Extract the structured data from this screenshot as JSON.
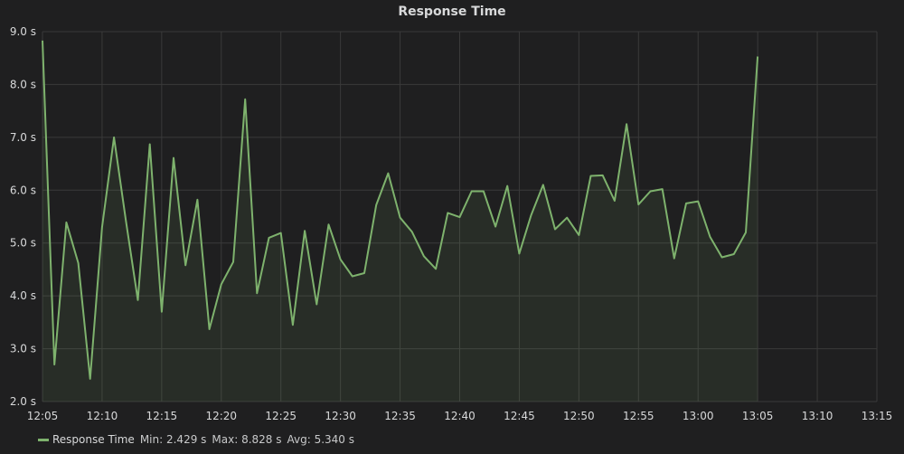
{
  "panel": {
    "title": "Response Time"
  },
  "legend": {
    "series_name": "Response Time",
    "min_text": "Min: 2.429 s",
    "max_text": "Max: 8.828 s",
    "avg_text": "Avg: 5.340 s"
  },
  "colors": {
    "background": "#1f1f20",
    "grid": "#3a3a3a",
    "series": "#7eb26d",
    "text": "#d8d9da"
  },
  "chart_data": {
    "type": "area",
    "title": "Response Time",
    "xlabel": "",
    "ylabel": "",
    "x_unit": "time",
    "y_unit": "s",
    "ylim": [
      2.0,
      9.0
    ],
    "y_ticks": [
      "2.0 s",
      "3.0 s",
      "4.0 s",
      "5.0 s",
      "6.0 s",
      "7.0 s",
      "8.0 s",
      "9.0 s"
    ],
    "y_tick_values": [
      2.0,
      3.0,
      4.0,
      5.0,
      6.0,
      7.0,
      8.0,
      9.0
    ],
    "xlim": [
      "12:05",
      "13:15"
    ],
    "x_ticks": [
      "12:05",
      "12:10",
      "12:15",
      "12:20",
      "12:25",
      "12:30",
      "12:35",
      "12:40",
      "12:45",
      "12:50",
      "12:55",
      "13:00",
      "13:05",
      "13:10",
      "13:15"
    ],
    "grid": true,
    "legend_position": "bottom-left",
    "series": [
      {
        "name": "Response Time",
        "color": "#7eb26d",
        "stats": {
          "min": 2.429,
          "max": 8.828,
          "avg": 5.34
        },
        "x": [
          "12:05",
          "12:06",
          "12:07",
          "12:08",
          "12:09",
          "12:10",
          "12:11",
          "12:12",
          "12:13",
          "12:14",
          "12:15",
          "12:16",
          "12:17",
          "12:18",
          "12:19",
          "12:20",
          "12:21",
          "12:22",
          "12:23",
          "12:24",
          "12:25",
          "12:26",
          "12:27",
          "12:28",
          "12:29",
          "12:30",
          "12:31",
          "12:32",
          "12:33",
          "12:34",
          "12:35",
          "12:36",
          "12:37",
          "12:38",
          "12:39",
          "12:40",
          "12:41",
          "12:42",
          "12:43",
          "12:44",
          "12:45",
          "12:46",
          "12:47",
          "12:48",
          "12:49",
          "12:50",
          "12:51",
          "12:52",
          "12:53",
          "12:54",
          "12:55",
          "12:56",
          "12:57",
          "12:58",
          "12:59",
          "13:00",
          "13:01",
          "13:02",
          "13:03",
          "13:04",
          "13:05"
        ],
        "values": [
          8.83,
          2.7,
          5.39,
          4.62,
          2.43,
          5.3,
          7.0,
          5.42,
          3.92,
          6.87,
          3.7,
          6.61,
          4.58,
          5.82,
          3.37,
          4.22,
          4.64,
          7.72,
          4.05,
          5.1,
          5.19,
          3.45,
          5.23,
          3.84,
          5.35,
          4.69,
          4.37,
          4.43,
          5.72,
          6.32,
          5.48,
          5.21,
          4.75,
          4.51,
          5.57,
          5.49,
          5.98,
          5.98,
          5.31,
          6.08,
          4.8,
          5.53,
          6.1,
          5.26,
          5.48,
          5.15,
          6.27,
          6.28,
          5.8,
          7.25,
          5.73,
          5.98,
          6.02,
          4.71,
          5.75,
          5.79,
          5.12,
          4.73,
          4.79,
          5.2,
          8.53
        ]
      }
    ]
  }
}
